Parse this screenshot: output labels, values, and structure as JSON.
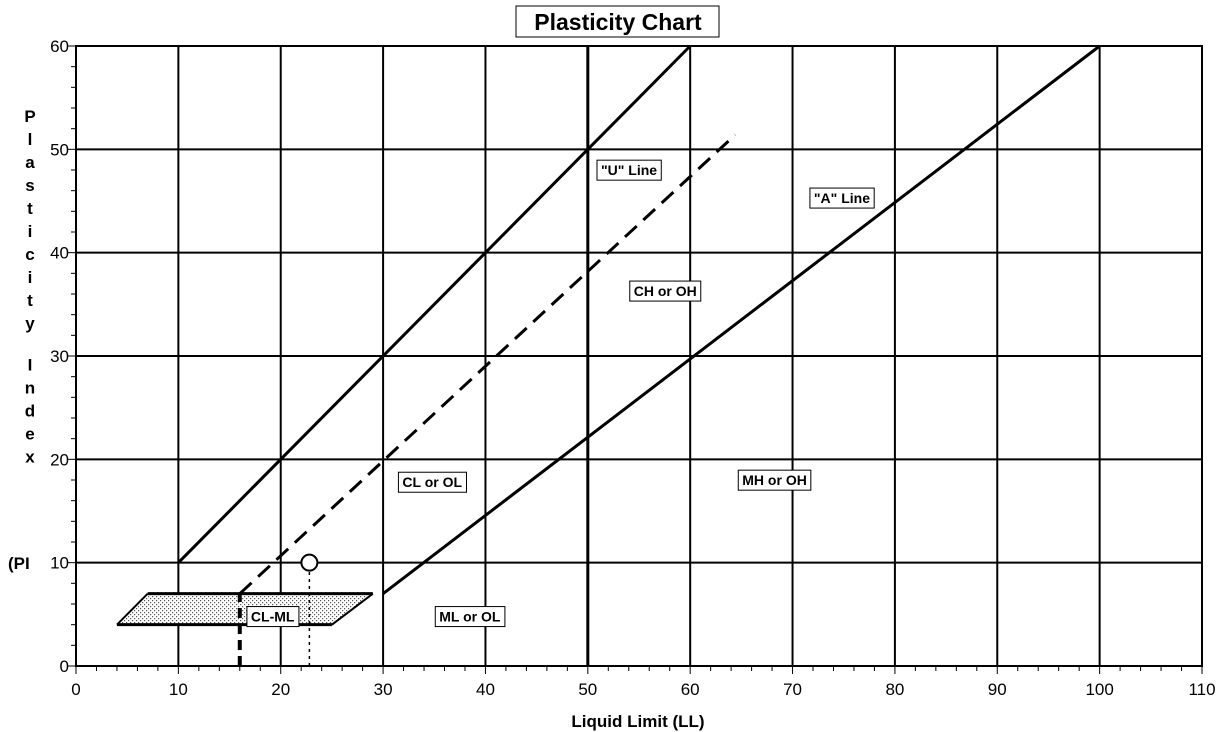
{
  "chart_data": {
    "type": "line",
    "title": "Plasticity Chart",
    "xlabel": "Liquid Limit (LL)",
    "ylabel": "Plasticity Index (PI",
    "xlim": [
      0,
      110
    ],
    "ylim": [
      0,
      60
    ],
    "x_ticks": [
      0,
      10,
      20,
      30,
      40,
      50,
      60,
      70,
      80,
      90,
      100,
      110
    ],
    "y_ticks": [
      0,
      10,
      20,
      30,
      40,
      50,
      60
    ],
    "grid": true,
    "series": [
      {
        "name": "\"U\" Line",
        "style": "solid",
        "x": [
          10,
          60
        ],
        "y": [
          10,
          60
        ]
      },
      {
        "name": "\"A\" Line",
        "style": "solid",
        "x": [
          30,
          100
        ],
        "y": [
          7,
          60
        ]
      },
      {
        "style": "dashed",
        "x": [
          16,
          64.4
        ],
        "y": [
          7,
          51.4
        ]
      }
    ],
    "vertical_lines": [
      {
        "x": 50,
        "style": "solid-bold"
      },
      {
        "x": 16,
        "style": "dashed-bold",
        "y": [
          0,
          7
        ]
      },
      {
        "x": 22.8,
        "style": "dotted",
        "y": [
          0,
          10
        ]
      }
    ],
    "cl_ml_zone": {
      "x": [
        4,
        29,
        25,
        7
      ],
      "y": [
        4,
        7,
        4,
        7
      ]
    },
    "data_points": [
      {
        "x": 22.8,
        "y": 10
      }
    ],
    "regions": [
      {
        "label": "\"U\" Line",
        "x": 50.8,
        "y": 47.5
      },
      {
        "label": "\"A\" Line",
        "x": 71.6,
        "y": 44.8
      },
      {
        "label": "CH or OH",
        "x": 54,
        "y": 35.8
      },
      {
        "label": "CL or OL",
        "x": 31.4,
        "y": 17.3
      },
      {
        "label": "MH or OH",
        "x": 64.6,
        "y": 17.5
      },
      {
        "label": "ML or OL",
        "x": 35,
        "y": 4.3
      },
      {
        "label": "CL-ML",
        "x": 16.6,
        "y": 4.3
      }
    ]
  }
}
